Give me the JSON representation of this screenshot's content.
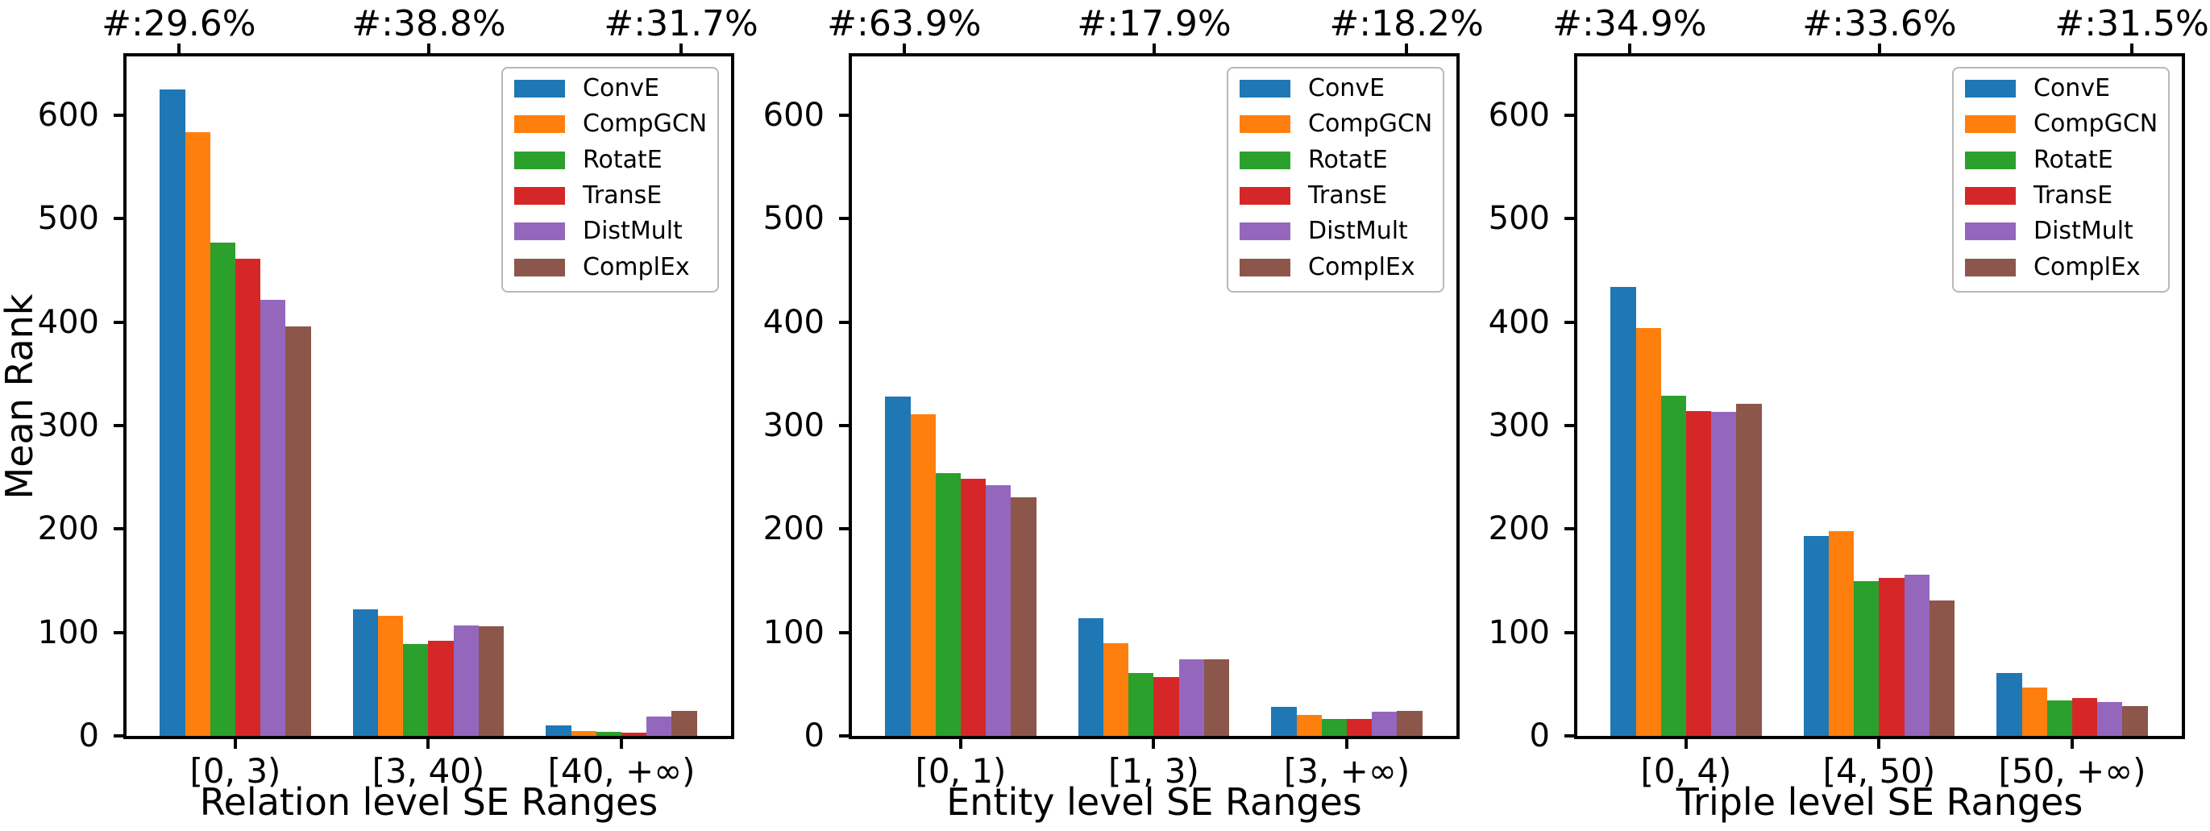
{
  "figure": {
    "background": "#ffffff",
    "ylabel": "Mean Rank"
  },
  "legend": {
    "position": "upper right",
    "entries": [
      {
        "label": "ConvE",
        "color": "#1f77b4"
      },
      {
        "label": "CompGCN",
        "color": "#ff7f0e"
      },
      {
        "label": "RotatE",
        "color": "#2ca02c"
      },
      {
        "label": "TransE",
        "color": "#d62728"
      },
      {
        "label": "DistMult",
        "color": "#9467bd"
      },
      {
        "label": "ComplEx",
        "color": "#8c564b"
      }
    ]
  },
  "chart_data": [
    {
      "type": "bar",
      "panel": "relation-level",
      "xlabel": "Relation level SE Ranges",
      "ylabel": "Mean Rank",
      "categories": [
        "[0, 3)",
        "[3, 40)",
        "[40, +∞)"
      ],
      "group_annotations": [
        "#:29.6%",
        "#:38.8%",
        "#:31.7%"
      ],
      "ylim": [
        0,
        657
      ],
      "yticks": [
        0,
        100,
        200,
        300,
        400,
        500,
        600
      ],
      "grid": false,
      "legend_position": "upper right",
      "series": [
        {
          "name": "ConvE",
          "color": "#1f77b4",
          "values": [
            625,
            122,
            10
          ]
        },
        {
          "name": "CompGCN",
          "color": "#ff7f0e",
          "values": [
            584,
            116,
            5
          ]
        },
        {
          "name": "RotatE",
          "color": "#2ca02c",
          "values": [
            477,
            89,
            4
          ]
        },
        {
          "name": "TransE",
          "color": "#d62728",
          "values": [
            461,
            92,
            3
          ]
        },
        {
          "name": "DistMult",
          "color": "#9467bd",
          "values": [
            422,
            107,
            19
          ]
        },
        {
          "name": "ComplEx",
          "color": "#8c564b",
          "values": [
            396,
            106,
            24
          ]
        }
      ]
    },
    {
      "type": "bar",
      "panel": "entity-level",
      "xlabel": "Entity level SE Ranges",
      "ylabel": "",
      "categories": [
        "[0, 1)",
        "[1, 3)",
        "[3, +∞)"
      ],
      "group_annotations": [
        "#:63.9%",
        "#:17.9%",
        "#:18.2%"
      ],
      "ylim": [
        0,
        657
      ],
      "yticks": [
        0,
        100,
        200,
        300,
        400,
        500,
        600
      ],
      "grid": false,
      "legend_position": "upper right",
      "series": [
        {
          "name": "ConvE",
          "color": "#1f77b4",
          "values": [
            328,
            114,
            28
          ]
        },
        {
          "name": "CompGCN",
          "color": "#ff7f0e",
          "values": [
            311,
            90,
            20
          ]
        },
        {
          "name": "RotatE",
          "color": "#2ca02c",
          "values": [
            254,
            61,
            16
          ]
        },
        {
          "name": "TransE",
          "color": "#d62728",
          "values": [
            249,
            57,
            16
          ]
        },
        {
          "name": "DistMult",
          "color": "#9467bd",
          "values": [
            242,
            74,
            23
          ]
        },
        {
          "name": "ComplEx",
          "color": "#8c564b",
          "values": [
            231,
            74,
            24
          ]
        }
      ]
    },
    {
      "type": "bar",
      "panel": "triple-level",
      "xlabel": "Triple level SE Ranges",
      "ylabel": "",
      "categories": [
        "[0, 4)",
        "[4, 50)",
        "[50, +∞)"
      ],
      "group_annotations": [
        "#:34.9%",
        "#:33.6%",
        "#:31.5%"
      ],
      "ylim": [
        0,
        657
      ],
      "yticks": [
        0,
        100,
        200,
        300,
        400,
        500,
        600
      ],
      "grid": false,
      "legend_position": "upper right",
      "series": [
        {
          "name": "ConvE",
          "color": "#1f77b4",
          "values": [
            434,
            193,
            61
          ]
        },
        {
          "name": "CompGCN",
          "color": "#ff7f0e",
          "values": [
            394,
            198,
            47
          ]
        },
        {
          "name": "RotatE",
          "color": "#2ca02c",
          "values": [
            329,
            150,
            34
          ]
        },
        {
          "name": "TransE",
          "color": "#d62728",
          "values": [
            314,
            153,
            37
          ]
        },
        {
          "name": "DistMult",
          "color": "#9467bd",
          "values": [
            313,
            156,
            33
          ]
        },
        {
          "name": "ComplEx",
          "color": "#8c564b",
          "values": [
            321,
            131,
            29
          ]
        }
      ]
    }
  ]
}
